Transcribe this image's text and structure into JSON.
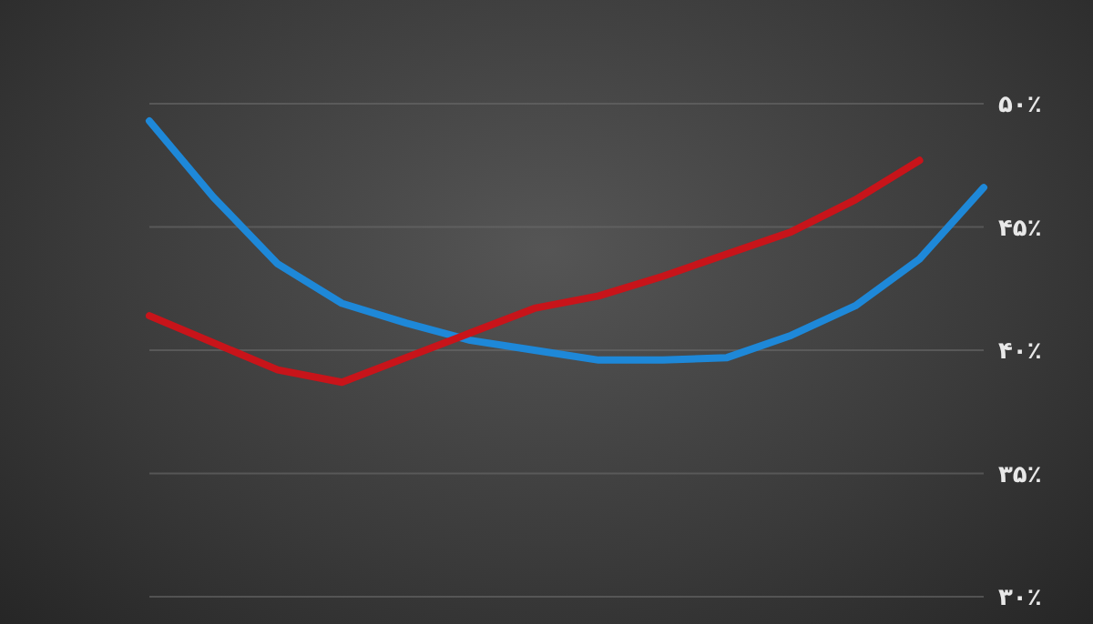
{
  "chart_data": {
    "type": "line",
    "categories": [
      null,
      null,
      null,
      null,
      null,
      null,
      null,
      null,
      null,
      null,
      null,
      null,
      null,
      null
    ],
    "series": [
      {
        "color": "#1e88d8",
        "values": [
          49.3,
          46.2,
          43.5,
          41.9,
          41.1,
          40.4,
          40.0,
          39.6,
          39.6,
          39.7,
          40.6,
          41.8,
          43.7,
          46.6
        ]
      },
      {
        "color": "#c8141a",
        "values": [
          41.4,
          40.3,
          39.2,
          38.7,
          39.7,
          40.7,
          41.7,
          42.2,
          43.0,
          43.9,
          44.8,
          46.1,
          47.7,
          null
        ]
      }
    ],
    "ylim": [
      30,
      50
    ],
    "yticks": [
      {
        "value": 30,
        "label": "۳۰٪"
      },
      {
        "value": 35,
        "label": "۳۵٪"
      },
      {
        "value": 40,
        "label": "۴۰٪"
      },
      {
        "value": 45,
        "label": "۴۵٪"
      },
      {
        "value": 50,
        "label": "۵۰٪"
      }
    ],
    "grid": "y",
    "marker": "none",
    "line_style": "solid"
  }
}
